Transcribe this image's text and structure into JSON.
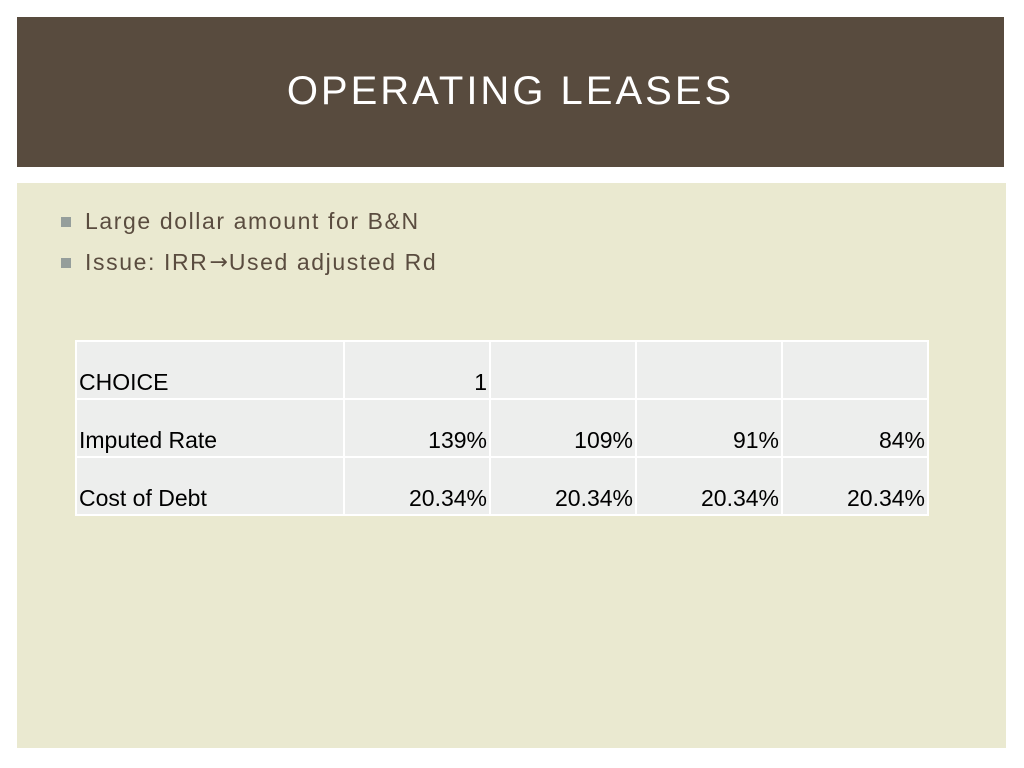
{
  "slide": {
    "title": "OPERATING LEASES"
  },
  "bullets": [
    {
      "text": "Large dollar amount for B&N"
    },
    {
      "text_before": "Issue: IRR",
      "arrow": "→",
      "text_after": "Used adjusted Rd"
    }
  ],
  "table": {
    "rows": [
      {
        "label": "CHOICE",
        "values": [
          "1",
          "",
          "",
          ""
        ]
      },
      {
        "label": "Imputed Rate",
        "values": [
          "139%",
          "109%",
          "91%",
          "84%"
        ]
      },
      {
        "label": "Cost of Debt",
        "values": [
          "20.34%",
          "20.34%",
          "20.34%",
          "20.34%"
        ]
      }
    ]
  },
  "colors": {
    "title_bar": "#584b3e",
    "content_background": "#eae9d0",
    "bullet_text": "#5a4c3f",
    "bullet_marker": "#959e9b",
    "table_cell": "#edeeed"
  }
}
